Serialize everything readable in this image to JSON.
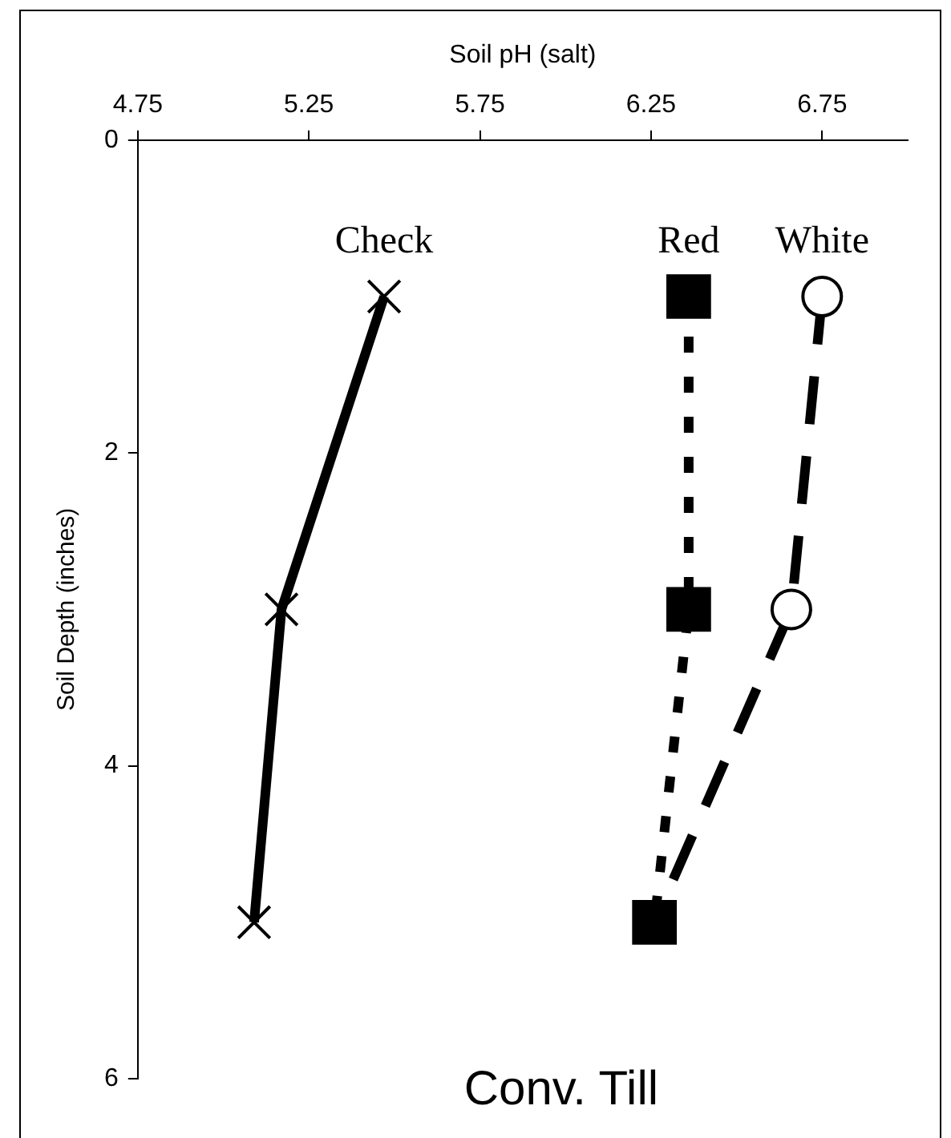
{
  "chart_data": {
    "type": "line",
    "title": "Conv. Till",
    "xlabel": "Soil pH (salt)",
    "ylabel": "Soil Depth (inches)",
    "xlim": [
      4.75,
      7.0
    ],
    "xticks": [
      4.75,
      5.25,
      5.75,
      6.25,
      6.75
    ],
    "ylim": [
      6,
      0
    ],
    "yticks": [
      0,
      2,
      4,
      6
    ],
    "grid": false,
    "legend": false,
    "series": [
      {
        "name": "Check",
        "color": "#000000",
        "x": [
          5.47,
          5.17,
          5.09
        ],
        "values": [
          1,
          3,
          5
        ],
        "marker": "cross",
        "line_style": "solid"
      },
      {
        "name": "White",
        "color": "#000000",
        "x": [
          6.75,
          6.66,
          6.26
        ],
        "values": [
          1,
          3,
          5
        ],
        "marker": "circle",
        "line_style": "dashed"
      },
      {
        "name": "Red",
        "color": "#000000",
        "x": [
          6.36,
          6.36,
          6.26
        ],
        "values": [
          1,
          3,
          5
        ],
        "marker": "square",
        "line_style": "dotted"
      }
    ]
  }
}
